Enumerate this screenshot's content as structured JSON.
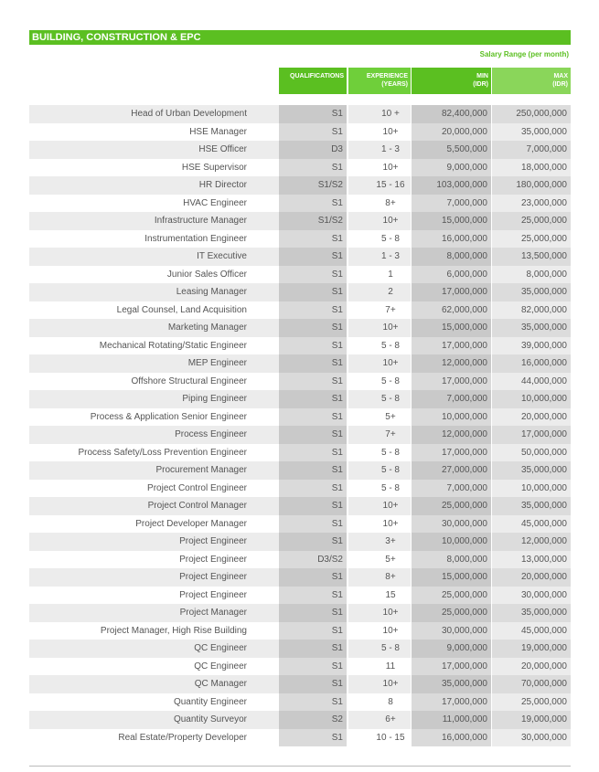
{
  "header": {
    "title": "BUILDING, CONSTRUCTION & EPC",
    "subtitle": "Salary Range (per month)"
  },
  "table": {
    "columns": [
      [
        "QUALIFICATIONS"
      ],
      [
        "EXPERIENCE",
        "(YEARS)"
      ],
      [
        "MIN",
        "(IDR)"
      ],
      [
        "MAX",
        "(IDR)"
      ]
    ],
    "rows": [
      [
        "Head of Urban Development",
        "S1",
        "10 +",
        "82,400,000",
        "250,000,000"
      ],
      [
        "HSE Manager",
        "S1",
        "10+",
        "20,000,000",
        "35,000,000"
      ],
      [
        "HSE Officer",
        "D3",
        "1 - 3",
        "5,500,000",
        "7,000,000"
      ],
      [
        "HSE Supervisor",
        "S1",
        "10+",
        "9,000,000",
        "18,000,000"
      ],
      [
        "HR Director",
        "S1/S2",
        "15 - 16",
        "103,000,000",
        "180,000,000"
      ],
      [
        "HVAC Engineer",
        "S1",
        "8+",
        "7,000,000",
        "23,000,000"
      ],
      [
        "Infrastructure Manager",
        "S1/S2",
        "10+",
        "15,000,000",
        "25,000,000"
      ],
      [
        "Instrumentation Engineer",
        "S1",
        "5 - 8",
        "16,000,000",
        "25,000,000"
      ],
      [
        "IT Executive",
        "S1",
        "1 - 3",
        "8,000,000",
        "13,500,000"
      ],
      [
        "Junior Sales Officer",
        "S1",
        "1",
        "6,000,000",
        "8,000,000"
      ],
      [
        "Leasing Manager",
        "S1",
        "2",
        "17,000,000",
        "35,000,000"
      ],
      [
        "Legal Counsel, Land Acquisition",
        "S1",
        "7+",
        "62,000,000",
        "82,000,000"
      ],
      [
        "Marketing Manager",
        "S1",
        "10+",
        "15,000,000",
        "35,000,000"
      ],
      [
        "Mechanical Rotating/Static Engineer",
        "S1",
        "5 - 8",
        "17,000,000",
        "39,000,000"
      ],
      [
        "MEP Engineer",
        "S1",
        "10+",
        "12,000,000",
        "16,000,000"
      ],
      [
        "Offshore Structural Engineer",
        "S1",
        "5 - 8",
        "17,000,000",
        "44,000,000"
      ],
      [
        "Piping Engineer",
        "S1",
        "5 - 8",
        "7,000,000",
        "10,000,000"
      ],
      [
        "Process & Application Senior Engineer",
        "S1",
        "5+",
        "10,000,000",
        "20,000,000"
      ],
      [
        "Process Engineer",
        "S1",
        "7+",
        "12,000,000",
        "17,000,000"
      ],
      [
        "Process Safety/Loss Prevention Engineer",
        "S1",
        "5 - 8",
        "17,000,000",
        "50,000,000"
      ],
      [
        "Procurement Manager",
        "S1",
        "5 - 8",
        "27,000,000",
        "35,000,000"
      ],
      [
        "Project Control Engineer",
        "S1",
        "5 - 8",
        "7,000,000",
        "10,000,000"
      ],
      [
        "Project Control Manager",
        "S1",
        "10+",
        "25,000,000",
        "35,000,000"
      ],
      [
        "Project Developer Manager",
        "S1",
        "10+",
        "30,000,000",
        "45,000,000"
      ],
      [
        "Project Engineer",
        "S1",
        "3+",
        "10,000,000",
        "12,000,000"
      ],
      [
        "Project Engineer",
        "D3/S2",
        "5+",
        "8,000,000",
        "13,000,000"
      ],
      [
        "Project Engineer",
        "S1",
        "8+",
        "15,000,000",
        "20,000,000"
      ],
      [
        "Project Engineer",
        "S1",
        "15",
        "25,000,000",
        "30,000,000"
      ],
      [
        "Project Manager",
        "S1",
        "10+",
        "25,000,000",
        "35,000,000"
      ],
      [
        "Project Manager, High Rise Building",
        "S1",
        "10+",
        "30,000,000",
        "45,000,000"
      ],
      [
        "QC Engineer",
        "S1",
        "5 - 8",
        "9,000,000",
        "19,000,000"
      ],
      [
        "QC Engineer",
        "S1",
        "11",
        "17,000,000",
        "20,000,000"
      ],
      [
        "QC Manager",
        "S1",
        "10+",
        "35,000,000",
        "70,000,000"
      ],
      [
        "Quantity Engineer",
        "S1",
        "8",
        "17,000,000",
        "25,000,000"
      ],
      [
        "Quantity Surveyor",
        "S2",
        "6+",
        "11,000,000",
        "19,000,000"
      ],
      [
        "Real Estate/Property Developer",
        "S1",
        "10 - 15",
        "16,000,000",
        "30,000,000"
      ]
    ]
  }
}
